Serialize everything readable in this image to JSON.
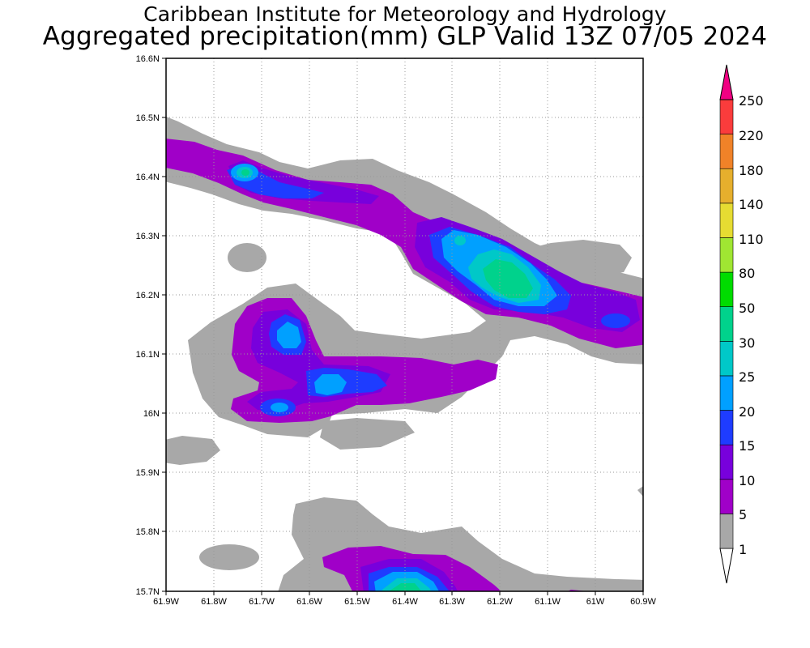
{
  "header": {
    "title": "Caribbean Institute for Meteorology and Hydrology",
    "subtitle": "Aggregated precipitation(mm) GLP Valid 13Z 07/05 2024"
  },
  "map": {
    "lon_range": [
      -61.9,
      -60.9
    ],
    "lat_range": [
      15.7,
      16.6
    ],
    "lon_ticks": [
      "61.9W",
      "61.8W",
      "61.7W",
      "61.6W",
      "61.5W",
      "61.4W",
      "61.3W",
      "61.2W",
      "61.1W",
      "61W",
      "60.9W"
    ],
    "lat_ticks": [
      "15.7N",
      "15.8N",
      "15.9N",
      "16N",
      "16.1N",
      "16.2N",
      "16.3N",
      "16.4N",
      "16.5N",
      "16.6N"
    ],
    "grid": true
  },
  "colorbar": {
    "levels": [
      "1",
      "5",
      "10",
      "15",
      "20",
      "25",
      "30",
      "50",
      "80",
      "110",
      "140",
      "180",
      "220",
      "250"
    ],
    "colors": [
      "#a8a8a8",
      "#a000c8",
      "#7800dc",
      "#1e3cff",
      "#00a0ff",
      "#00c8c8",
      "#00d28c",
      "#00dc00",
      "#a0e632",
      "#e6dc32",
      "#e6af2d",
      "#f08228",
      "#fa3c3c",
      "#f00082"
    ]
  }
}
